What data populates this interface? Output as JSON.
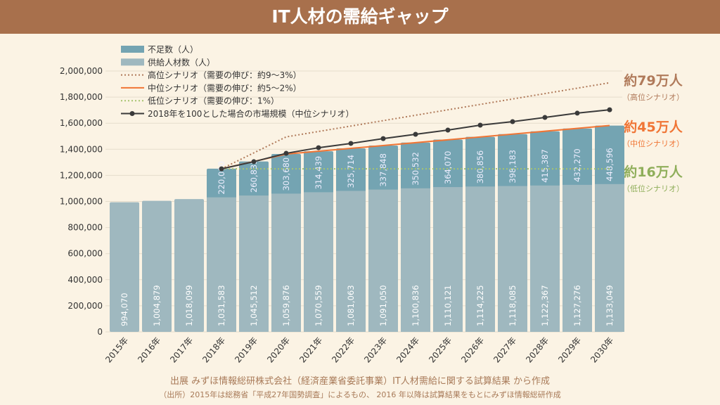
{
  "title": "IT人材の需給ギャップ",
  "colors": {
    "shortage": "#74a4b2",
    "supply": "#9fb8bf",
    "high": "#b07a5a",
    "mid": "#f07535",
    "low": "#a6c46f",
    "market": "#3a3a3a"
  },
  "chart_data": {
    "type": "bar",
    "stacked": true,
    "categories": [
      "2015年",
      "2016年",
      "2017年",
      "2018年",
      "2019年",
      "2020年",
      "2021年",
      "2022年",
      "2023年",
      "2024年",
      "2025年",
      "2026年",
      "2027年",
      "2028年",
      "2029年",
      "2030年"
    ],
    "series": [
      {
        "name": "供給人材数（人）",
        "values": [
          994070,
          1004879,
          1018099,
          1031583,
          1045512,
          1059876,
          1070559,
          1081063,
          1091050,
          1100836,
          1110121,
          1114225,
          1118085,
          1122367,
          1127276,
          1133049
        ],
        "labels": [
          "994,070",
          "1,004,879",
          "1,018,099",
          "1,031,583",
          "1,045,512",
          "1,059,876",
          "1,070,559",
          "1,081,063",
          "1,091,050",
          "1,100,836",
          "1,110,121",
          "1,114,225",
          "1,118,085",
          "1,122,367",
          "1,127,276",
          "1,133,049"
        ]
      },
      {
        "name": "不足数（人）",
        "values": [
          null,
          null,
          null,
          220000,
          260835,
          303680,
          314439,
          325714,
          337848,
          350532,
          364070,
          380856,
          398183,
          415387,
          432270,
          448596
        ],
        "labels": [
          "",
          "",
          "",
          "220,000",
          "260,835",
          "303,680",
          "314,439",
          "325,714",
          "337,848",
          "350,532",
          "364,070",
          "380,856",
          "398,183",
          "415,387",
          "432,270",
          "448,596"
        ]
      }
    ],
    "lines": [
      {
        "name": "高位シナリオ（需要の伸び：約9〜3%）",
        "style": "dotted",
        "points": [
          [
            "2018年",
            1250000
          ],
          [
            "2020年",
            1495000
          ],
          [
            "2030年",
            1910000
          ]
        ]
      },
      {
        "name": "中位シナリオ（需要の伸び：約5〜2%）",
        "style": "solid",
        "points": [
          [
            "2018年",
            1250000
          ],
          [
            "2020年",
            1363000
          ],
          [
            "2030年",
            1582000
          ]
        ]
      },
      {
        "name": "低位シナリオ（需要の伸び：1%）",
        "style": "dotted",
        "points": [
          [
            "2018年",
            1250000
          ],
          [
            "2030年",
            1250000
          ]
        ]
      },
      {
        "name": "2018年を100とした場合の市場規模（中位シナリオ）",
        "style": "line-marker",
        "points": [
          [
            "2018年",
            1250000
          ],
          [
            "2019年",
            1305000
          ],
          [
            "2020年",
            1369000
          ],
          [
            "2021年",
            1412000
          ],
          [
            "2022年",
            1445000
          ],
          [
            "2023年",
            1482000
          ],
          [
            "2024年",
            1515000
          ],
          [
            "2025年",
            1547000
          ],
          [
            "2026年",
            1585000
          ],
          [
            "2027年",
            1612000
          ],
          [
            "2028年",
            1644000
          ],
          [
            "2029年",
            1677000
          ],
          [
            "2030年",
            1703000
          ]
        ]
      }
    ],
    "ylim": [
      0,
      2000000
    ],
    "yticks": [
      "0",
      "200,000",
      "400,000",
      "600,000",
      "800,000",
      "1,000,000",
      "1,200,000",
      "1,400,000",
      "1,600,000",
      "1,800,000",
      "2,000,000"
    ],
    "grid": true,
    "legend": "top-left",
    "annotations": [
      {
        "value": "約79万人",
        "sub": "（高位シナリオ）"
      },
      {
        "value": "約45万人",
        "sub": "（中位シナリオ）"
      },
      {
        "value": "約16万人",
        "sub": "（低位シナリオ）"
      }
    ]
  },
  "source": "出展 みずほ情報総研株式会社（経済産業省委託事業）IT人材需給に関する試算結果 から作成",
  "note": "（出所）2015年は総務省「平成27年国勢調査」によるもの、 2016 年以降は試算結果をもとにみずほ情報総研作成"
}
